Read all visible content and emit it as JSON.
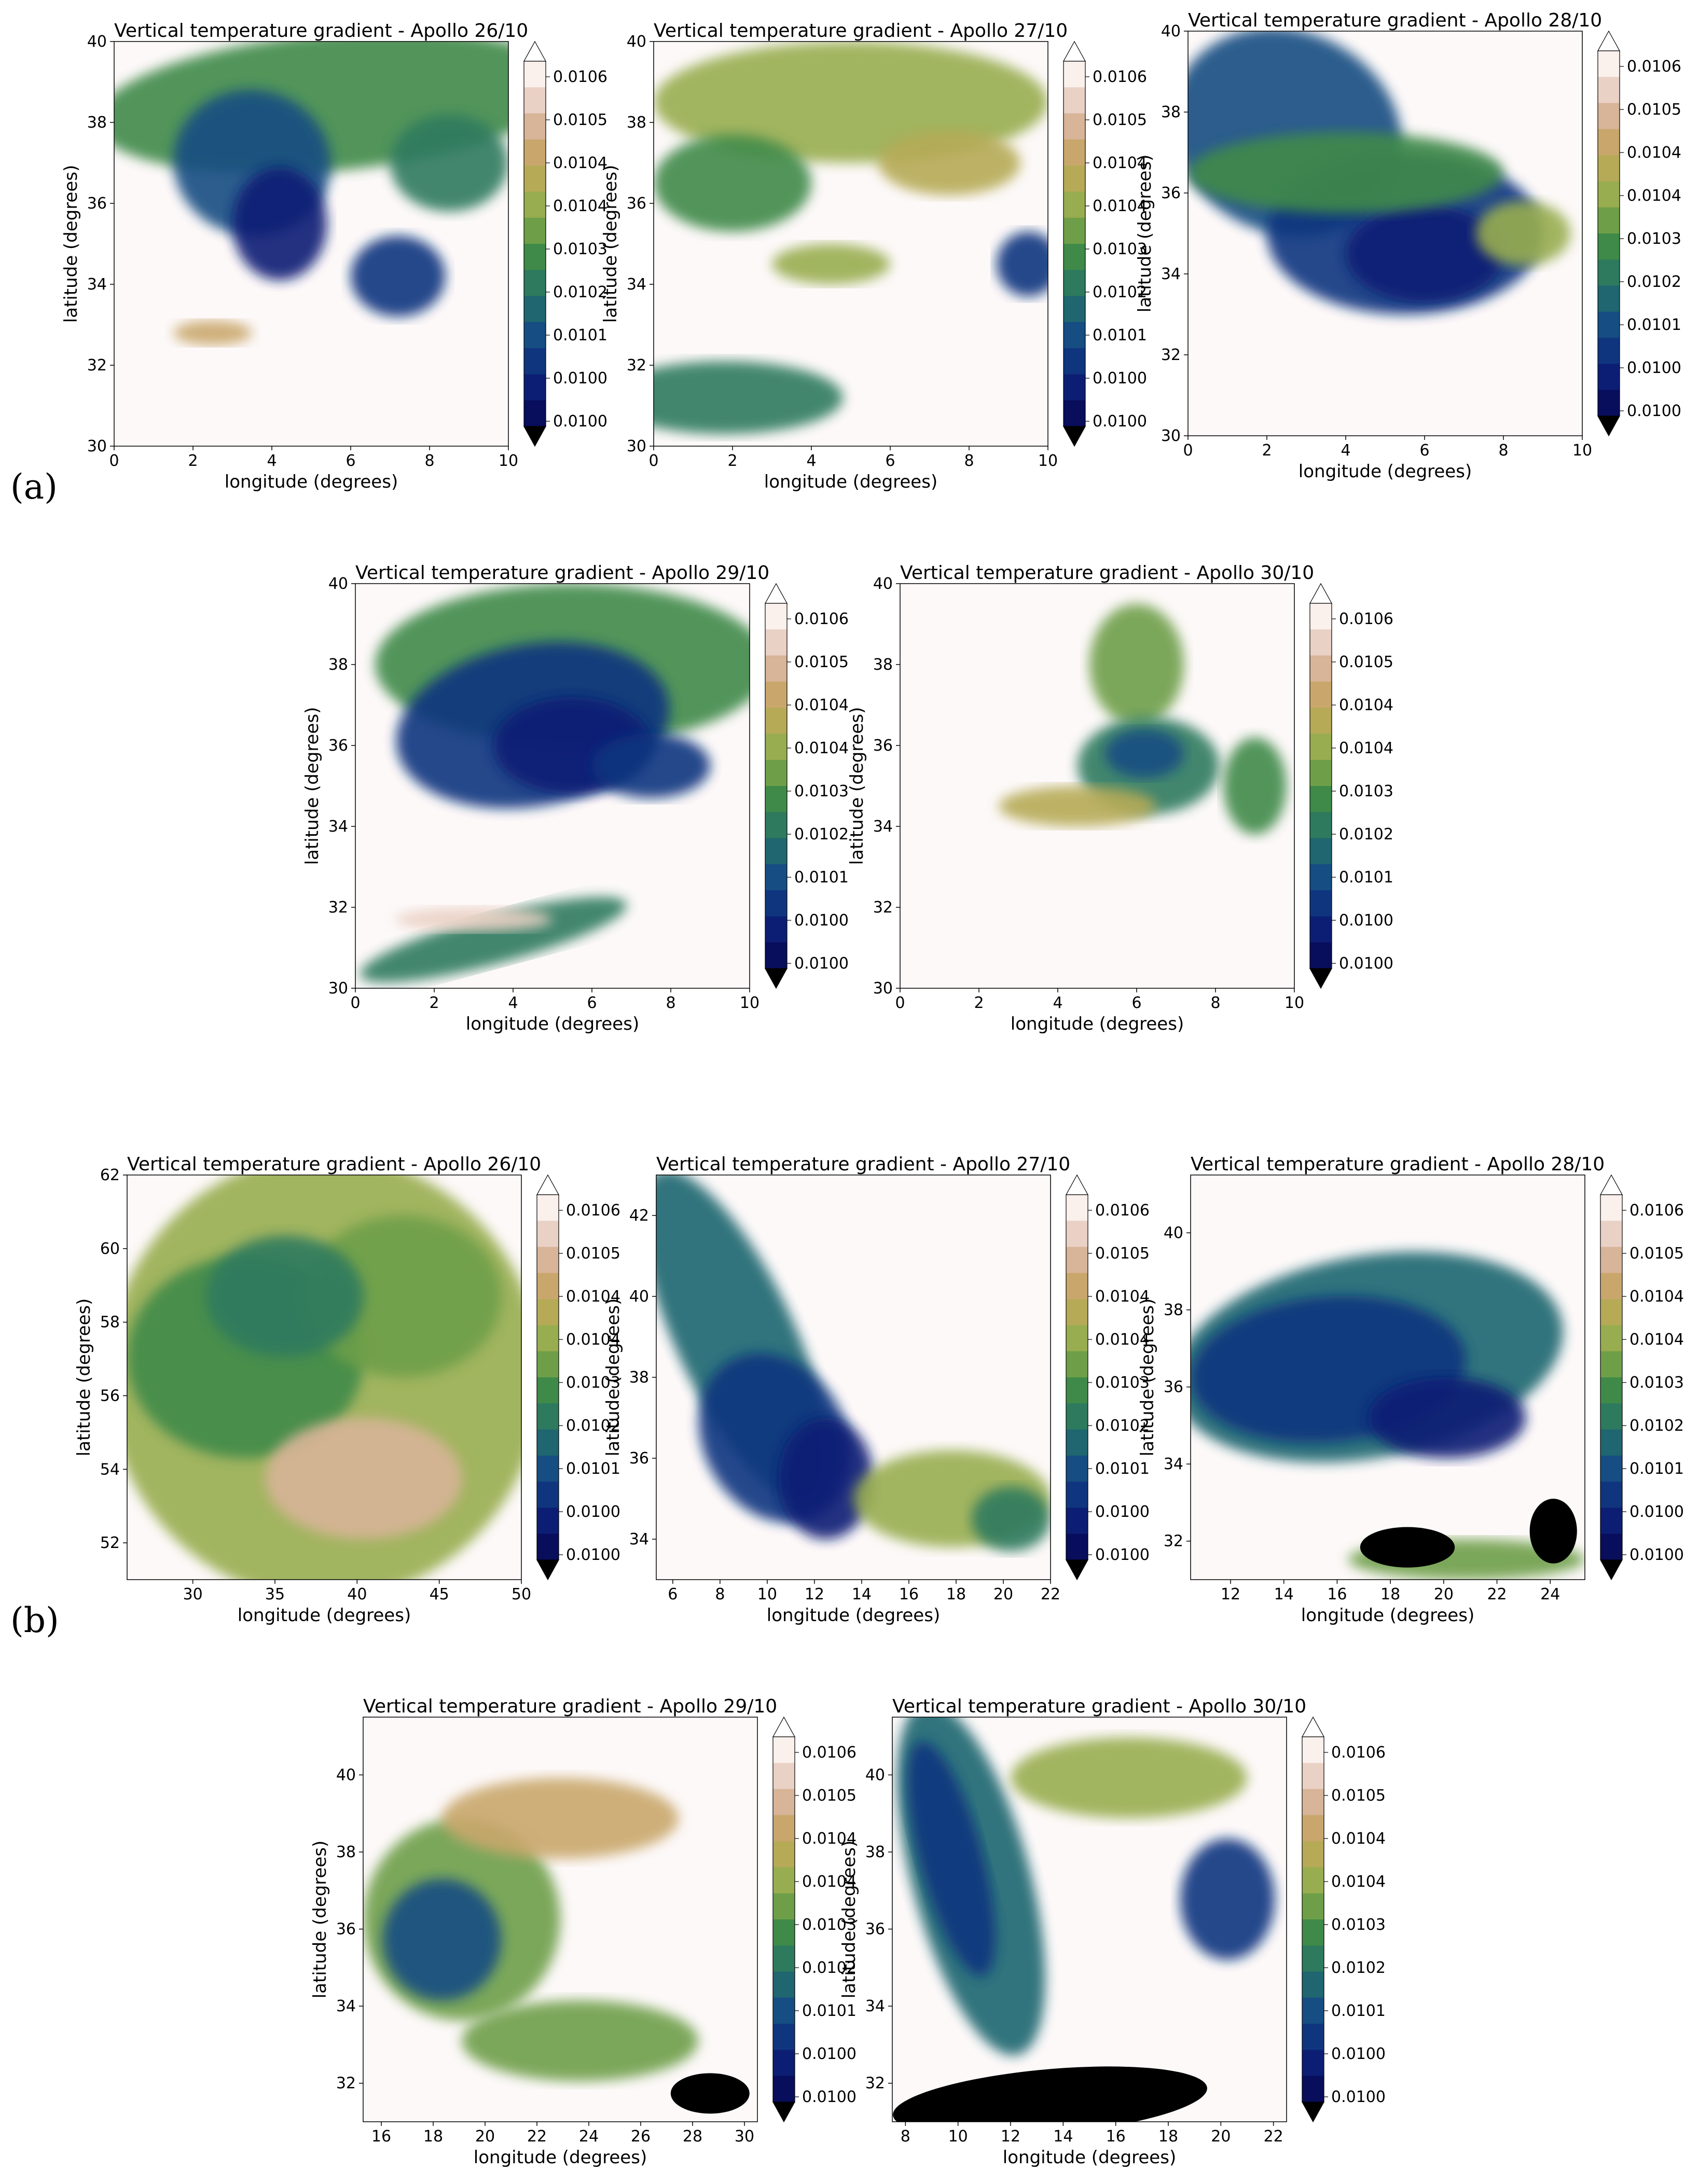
{
  "section_labels": [
    "(a)",
    "(b)"
  ],
  "colors": {
    "colormap": [
      "#ffffff",
      "#faf0ec",
      "#ead1c5",
      "#d8b498",
      "#c9a76c",
      "#b6aa57",
      "#98ad4f",
      "#6e9f48",
      "#3f8a48",
      "#2d7a5e",
      "#1f6670",
      "#164d82",
      "#10357f",
      "#0c1e74",
      "#080d5c"
    ],
    "masked": "#000000"
  },
  "chart_data": [
    {
      "type": "heatmap",
      "title": "Vertical temperature gradient - Apollo 26/10",
      "xlabel": "longitude (degrees)",
      "ylabel": "latitude (degrees)",
      "xlim": [
        0,
        10
      ],
      "ylim": [
        30,
        40
      ],
      "xticks": [
        "0",
        "2",
        "4",
        "6",
        "8",
        "10"
      ],
      "yticks": [
        "30",
        "32",
        "34",
        "36",
        "38",
        "40"
      ],
      "colorbar": {
        "ticks": [
          "0.0100",
          "0.0100",
          "0.0101",
          "0.0102",
          "0.0103",
          "0.0104",
          "0.0104",
          "0.0105",
          "0.0106"
        ],
        "extend": "both"
      }
    },
    {
      "type": "heatmap",
      "title": "Vertical temperature gradient - Apollo 27/10",
      "xlabel": "longitude (degrees)",
      "ylabel": "latitude (degrees)",
      "xlim": [
        0,
        10
      ],
      "ylim": [
        30,
        40
      ],
      "xticks": [
        "0",
        "2",
        "4",
        "6",
        "8",
        "10"
      ],
      "yticks": [
        "30",
        "32",
        "34",
        "36",
        "38",
        "40"
      ],
      "colorbar": {
        "ticks": [
          "0.0100",
          "0.0100",
          "0.0101",
          "0.0102",
          "0.0103",
          "0.0104",
          "0.0104",
          "0.0105",
          "0.0106"
        ],
        "extend": "both"
      }
    },
    {
      "type": "heatmap",
      "title": "Vertical temperature gradient - Apollo 28/10",
      "xlabel": "longitude (degrees)",
      "ylabel": "latitude (degrees)",
      "xlim": [
        0,
        10
      ],
      "ylim": [
        30,
        40
      ],
      "xticks": [
        "0",
        "2",
        "4",
        "6",
        "8",
        "10"
      ],
      "yticks": [
        "30",
        "32",
        "34",
        "36",
        "38",
        "40"
      ],
      "colorbar": {
        "ticks": [
          "0.0100",
          "0.0100",
          "0.0101",
          "0.0102",
          "0.0103",
          "0.0104",
          "0.0104",
          "0.0105",
          "0.0106"
        ],
        "extend": "both"
      }
    },
    {
      "type": "heatmap",
      "title": "Vertical temperature gradient - Apollo 29/10",
      "xlabel": "longitude (degrees)",
      "ylabel": "latitude (degrees)",
      "xlim": [
        0,
        10
      ],
      "ylim": [
        30,
        40
      ],
      "xticks": [
        "0",
        "2",
        "4",
        "6",
        "8",
        "10"
      ],
      "yticks": [
        "30",
        "32",
        "34",
        "36",
        "38",
        "40"
      ],
      "colorbar": {
        "ticks": [
          "0.0100",
          "0.0100",
          "0.0101",
          "0.0102",
          "0.0103",
          "0.0104",
          "0.0104",
          "0.0105",
          "0.0106"
        ],
        "extend": "both"
      }
    },
    {
      "type": "heatmap",
      "title": "Vertical temperature gradient - Apollo 30/10",
      "xlabel": "longitude (degrees)",
      "ylabel": "latitude (degrees)",
      "xlim": [
        0,
        10
      ],
      "ylim": [
        30,
        40
      ],
      "xticks": [
        "0",
        "2",
        "4",
        "6",
        "8",
        "10"
      ],
      "yticks": [
        "30",
        "32",
        "34",
        "36",
        "38",
        "40"
      ],
      "colorbar": {
        "ticks": [
          "0.0100",
          "0.0100",
          "0.0101",
          "0.0102",
          "0.0103",
          "0.0104",
          "0.0104",
          "0.0105",
          "0.0106"
        ],
        "extend": "both"
      }
    },
    {
      "type": "heatmap",
      "title": "Vertical temperature gradient - Apollo 26/10",
      "xlabel": "longitude (degrees)",
      "ylabel": "latitude (degrees)",
      "xlim": [
        26,
        50
      ],
      "ylim": [
        51,
        62
      ],
      "xticks": [
        "30",
        "35",
        "40",
        "45",
        "50"
      ],
      "yticks": [
        "52",
        "54",
        "56",
        "58",
        "60",
        "62"
      ],
      "colorbar": {
        "ticks": [
          "0.0100",
          "0.0100",
          "0.0101",
          "0.0102",
          "0.0103",
          "0.0104",
          "0.0104",
          "0.0105",
          "0.0106"
        ],
        "extend": "both"
      }
    },
    {
      "type": "heatmap",
      "title": "Vertical temperature gradient - Apollo 27/10",
      "xlabel": "longitude (degrees)",
      "ylabel": "latitude (degrees)",
      "xlim": [
        5.3,
        22
      ],
      "ylim": [
        33,
        43
      ],
      "xticks": [
        "6",
        "8",
        "10",
        "12",
        "14",
        "16",
        "18",
        "20",
        "22"
      ],
      "yticks": [
        "34",
        "36",
        "38",
        "40",
        "42"
      ],
      "colorbar": {
        "ticks": [
          "0.0100",
          "0.0100",
          "0.0101",
          "0.0102",
          "0.0103",
          "0.0104",
          "0.0104",
          "0.0105",
          "0.0106"
        ],
        "extend": "both"
      }
    },
    {
      "type": "heatmap",
      "title": "Vertical temperature gradient - Apollo 28/10",
      "xlabel": "longitude (degrees)",
      "ylabel": "latitude (degrees)",
      "xlim": [
        10.5,
        25.3
      ],
      "ylim": [
        31,
        41.5
      ],
      "xticks": [
        "12",
        "14",
        "16",
        "18",
        "20",
        "22",
        "24"
      ],
      "yticks": [
        "32",
        "34",
        "36",
        "38",
        "40"
      ],
      "colorbar": {
        "ticks": [
          "0.0100",
          "0.0100",
          "0.0101",
          "0.0102",
          "0.0103",
          "0.0104",
          "0.0104",
          "0.0105",
          "0.0106"
        ],
        "extend": "both"
      }
    },
    {
      "type": "heatmap",
      "title": "Vertical temperature gradient - Apollo 29/10",
      "xlabel": "longitude (degrees)",
      "ylabel": "latitude (degrees)",
      "xlim": [
        15.3,
        30.5
      ],
      "ylim": [
        31,
        41.5
      ],
      "xticks": [
        "16",
        "18",
        "20",
        "22",
        "24",
        "26",
        "28",
        "30"
      ],
      "yticks": [
        "32",
        "34",
        "36",
        "38",
        "40"
      ],
      "colorbar": {
        "ticks": [
          "0.0100",
          "0.0100",
          "0.0101",
          "0.0102",
          "0.0103",
          "0.0104",
          "0.0104",
          "0.0105",
          "0.0106"
        ],
        "extend": "both"
      }
    },
    {
      "type": "heatmap",
      "title": "Vertical temperature gradient - Apollo 30/10",
      "xlabel": "longitude (degrees)",
      "ylabel": "latitude (degrees)",
      "xlim": [
        7.5,
        22.5
      ],
      "ylim": [
        31,
        41.5
      ],
      "xticks": [
        "8",
        "10",
        "12",
        "14",
        "16",
        "18",
        "20",
        "22"
      ],
      "yticks": [
        "32",
        "34",
        "36",
        "38",
        "40"
      ],
      "colorbar": {
        "ticks": [
          "0.0100",
          "0.0100",
          "0.0101",
          "0.0102",
          "0.0103",
          "0.0104",
          "0.0104",
          "0.0105",
          "0.0106"
        ],
        "extend": "both"
      }
    }
  ]
}
